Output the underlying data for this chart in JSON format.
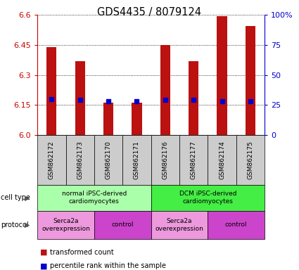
{
  "title": "GDS4435 / 8079124",
  "samples": [
    "GSM862172",
    "GSM862173",
    "GSM862170",
    "GSM862171",
    "GSM862176",
    "GSM862177",
    "GSM862174",
    "GSM862175"
  ],
  "transformed_counts": [
    6.44,
    6.37,
    6.16,
    6.16,
    6.45,
    6.37,
    6.595,
    6.545
  ],
  "percentile_ranks": [
    30,
    29,
    28,
    28,
    29,
    29,
    28,
    28
  ],
  "ylim": [
    6.0,
    6.6
  ],
  "yticks": [
    6.0,
    6.15,
    6.3,
    6.45,
    6.6
  ],
  "right_yticks": [
    0,
    25,
    50,
    75,
    100
  ],
  "right_ylim": [
    0,
    100
  ],
  "bar_color": "#bb1111",
  "dot_color": "#0000cc",
  "bar_bottom": 6.0,
  "cell_type_groups": [
    {
      "label": "normal iPSC-derived\ncardiomyocytes",
      "start": 0,
      "end": 4,
      "color": "#aaffaa"
    },
    {
      "label": "DCM iPSC-derived\ncardiomyocytes",
      "start": 4,
      "end": 8,
      "color": "#44ee44"
    }
  ],
  "protocol_groups": [
    {
      "label": "Serca2a\noverexpression",
      "start": 0,
      "end": 2,
      "color": "#ee99dd"
    },
    {
      "label": "control",
      "start": 2,
      "end": 4,
      "color": "#cc44cc"
    },
    {
      "label": "Serca2a\noverexpression",
      "start": 4,
      "end": 6,
      "color": "#ee99dd"
    },
    {
      "label": "control",
      "start": 6,
      "end": 8,
      "color": "#cc44cc"
    }
  ],
  "left_label_color": "#cc0000",
  "right_label_color": "#0000cc",
  "bg_color": "#ffffff",
  "sample_bg_color": "#cccccc",
  "chart_bg_color": "#ffffff"
}
